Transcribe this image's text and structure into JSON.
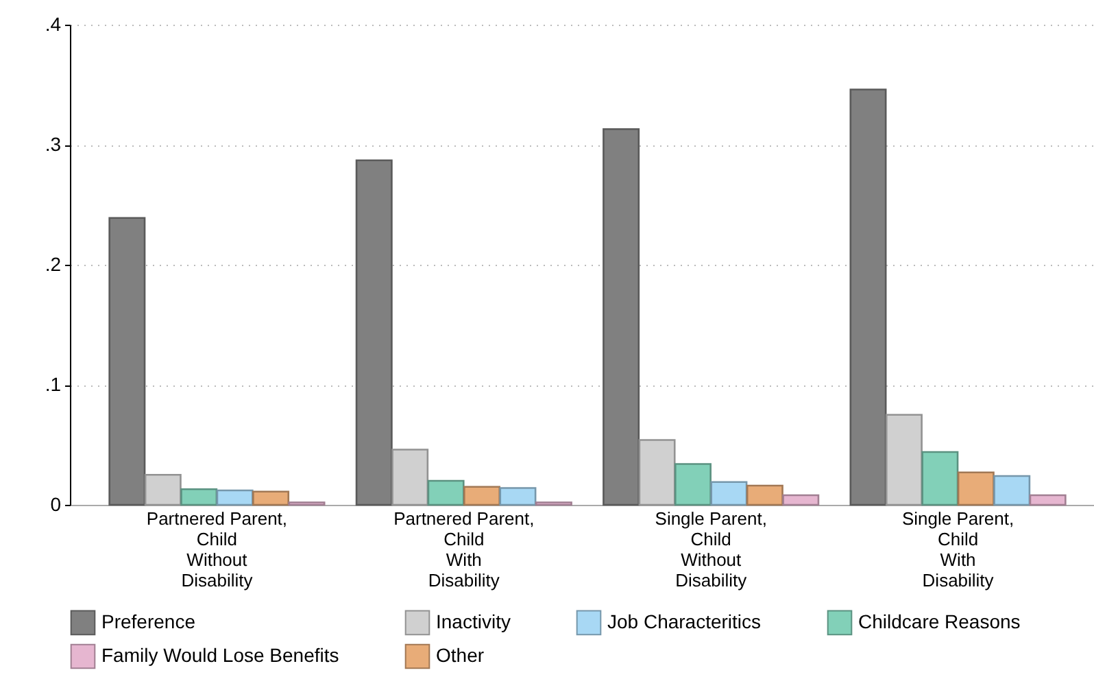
{
  "chart_data": {
    "type": "bar",
    "categories": [
      "Partnered Parent,\nChild\nWithout\nDisability",
      "Partnered Parent,\nChild\nWith\nDisability",
      "Single Parent,\nChild\nWithout\nDisability",
      "Single Parent,\nChild\nWith\nDisability"
    ],
    "series": [
      {
        "name": "Preference",
        "color": "#808080",
        "values": [
          0.239,
          0.287,
          0.313,
          0.346
        ]
      },
      {
        "name": "Inactivity",
        "color": "#d0d0d0",
        "values": [
          0.025,
          0.046,
          0.054,
          0.075
        ]
      },
      {
        "name": "Job Characteritics",
        "color": "#a8d8f4",
        "values": [
          0.012,
          0.014,
          0.019,
          0.024
        ]
      },
      {
        "name": "Childcare Reasons",
        "color": "#82d0b8",
        "values": [
          0.013,
          0.02,
          0.034,
          0.044
        ]
      },
      {
        "name": "Family Would Lose Benefits",
        "color": "#e6b6d0",
        "values": [
          0.002,
          0.002,
          0.008,
          0.008
        ]
      },
      {
        "name": "Other",
        "color": "#e8ac78",
        "values": [
          0.011,
          0.015,
          0.016,
          0.027
        ]
      }
    ],
    "ylim": [
      0,
      0.4
    ],
    "yticks": [
      0,
      {
        "value": 0.1,
        "label": ".1"
      },
      {
        "value": 0.2,
        "label": ".2"
      },
      {
        "value": 0.3,
        "label": ".3"
      },
      {
        "value": 0.4,
        "label": ".4"
      }
    ],
    "grid": "y",
    "legend": "bottom"
  }
}
